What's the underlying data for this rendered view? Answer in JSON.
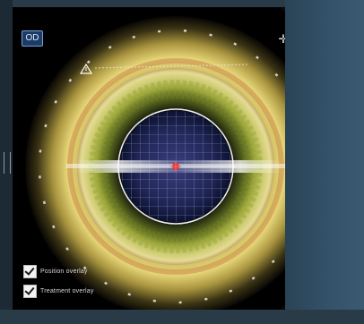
{
  "view": {
    "eye_label": "OD",
    "crosshair_icon": "crosshair-move-icon",
    "warning_icon": "warning-triangle-icon"
  },
  "overlays": {
    "checkboxes": [
      {
        "label": "Position overlay",
        "checked": true
      },
      {
        "label": "Treatment overlay",
        "checked": true
      }
    ]
  },
  "colors": {
    "panel": "#35536a",
    "lens_ring": "#d9c56a",
    "center_grid": "#2a3a7a",
    "target_marker": "#e23a3a",
    "eye_badge": "#1c3c66"
  }
}
